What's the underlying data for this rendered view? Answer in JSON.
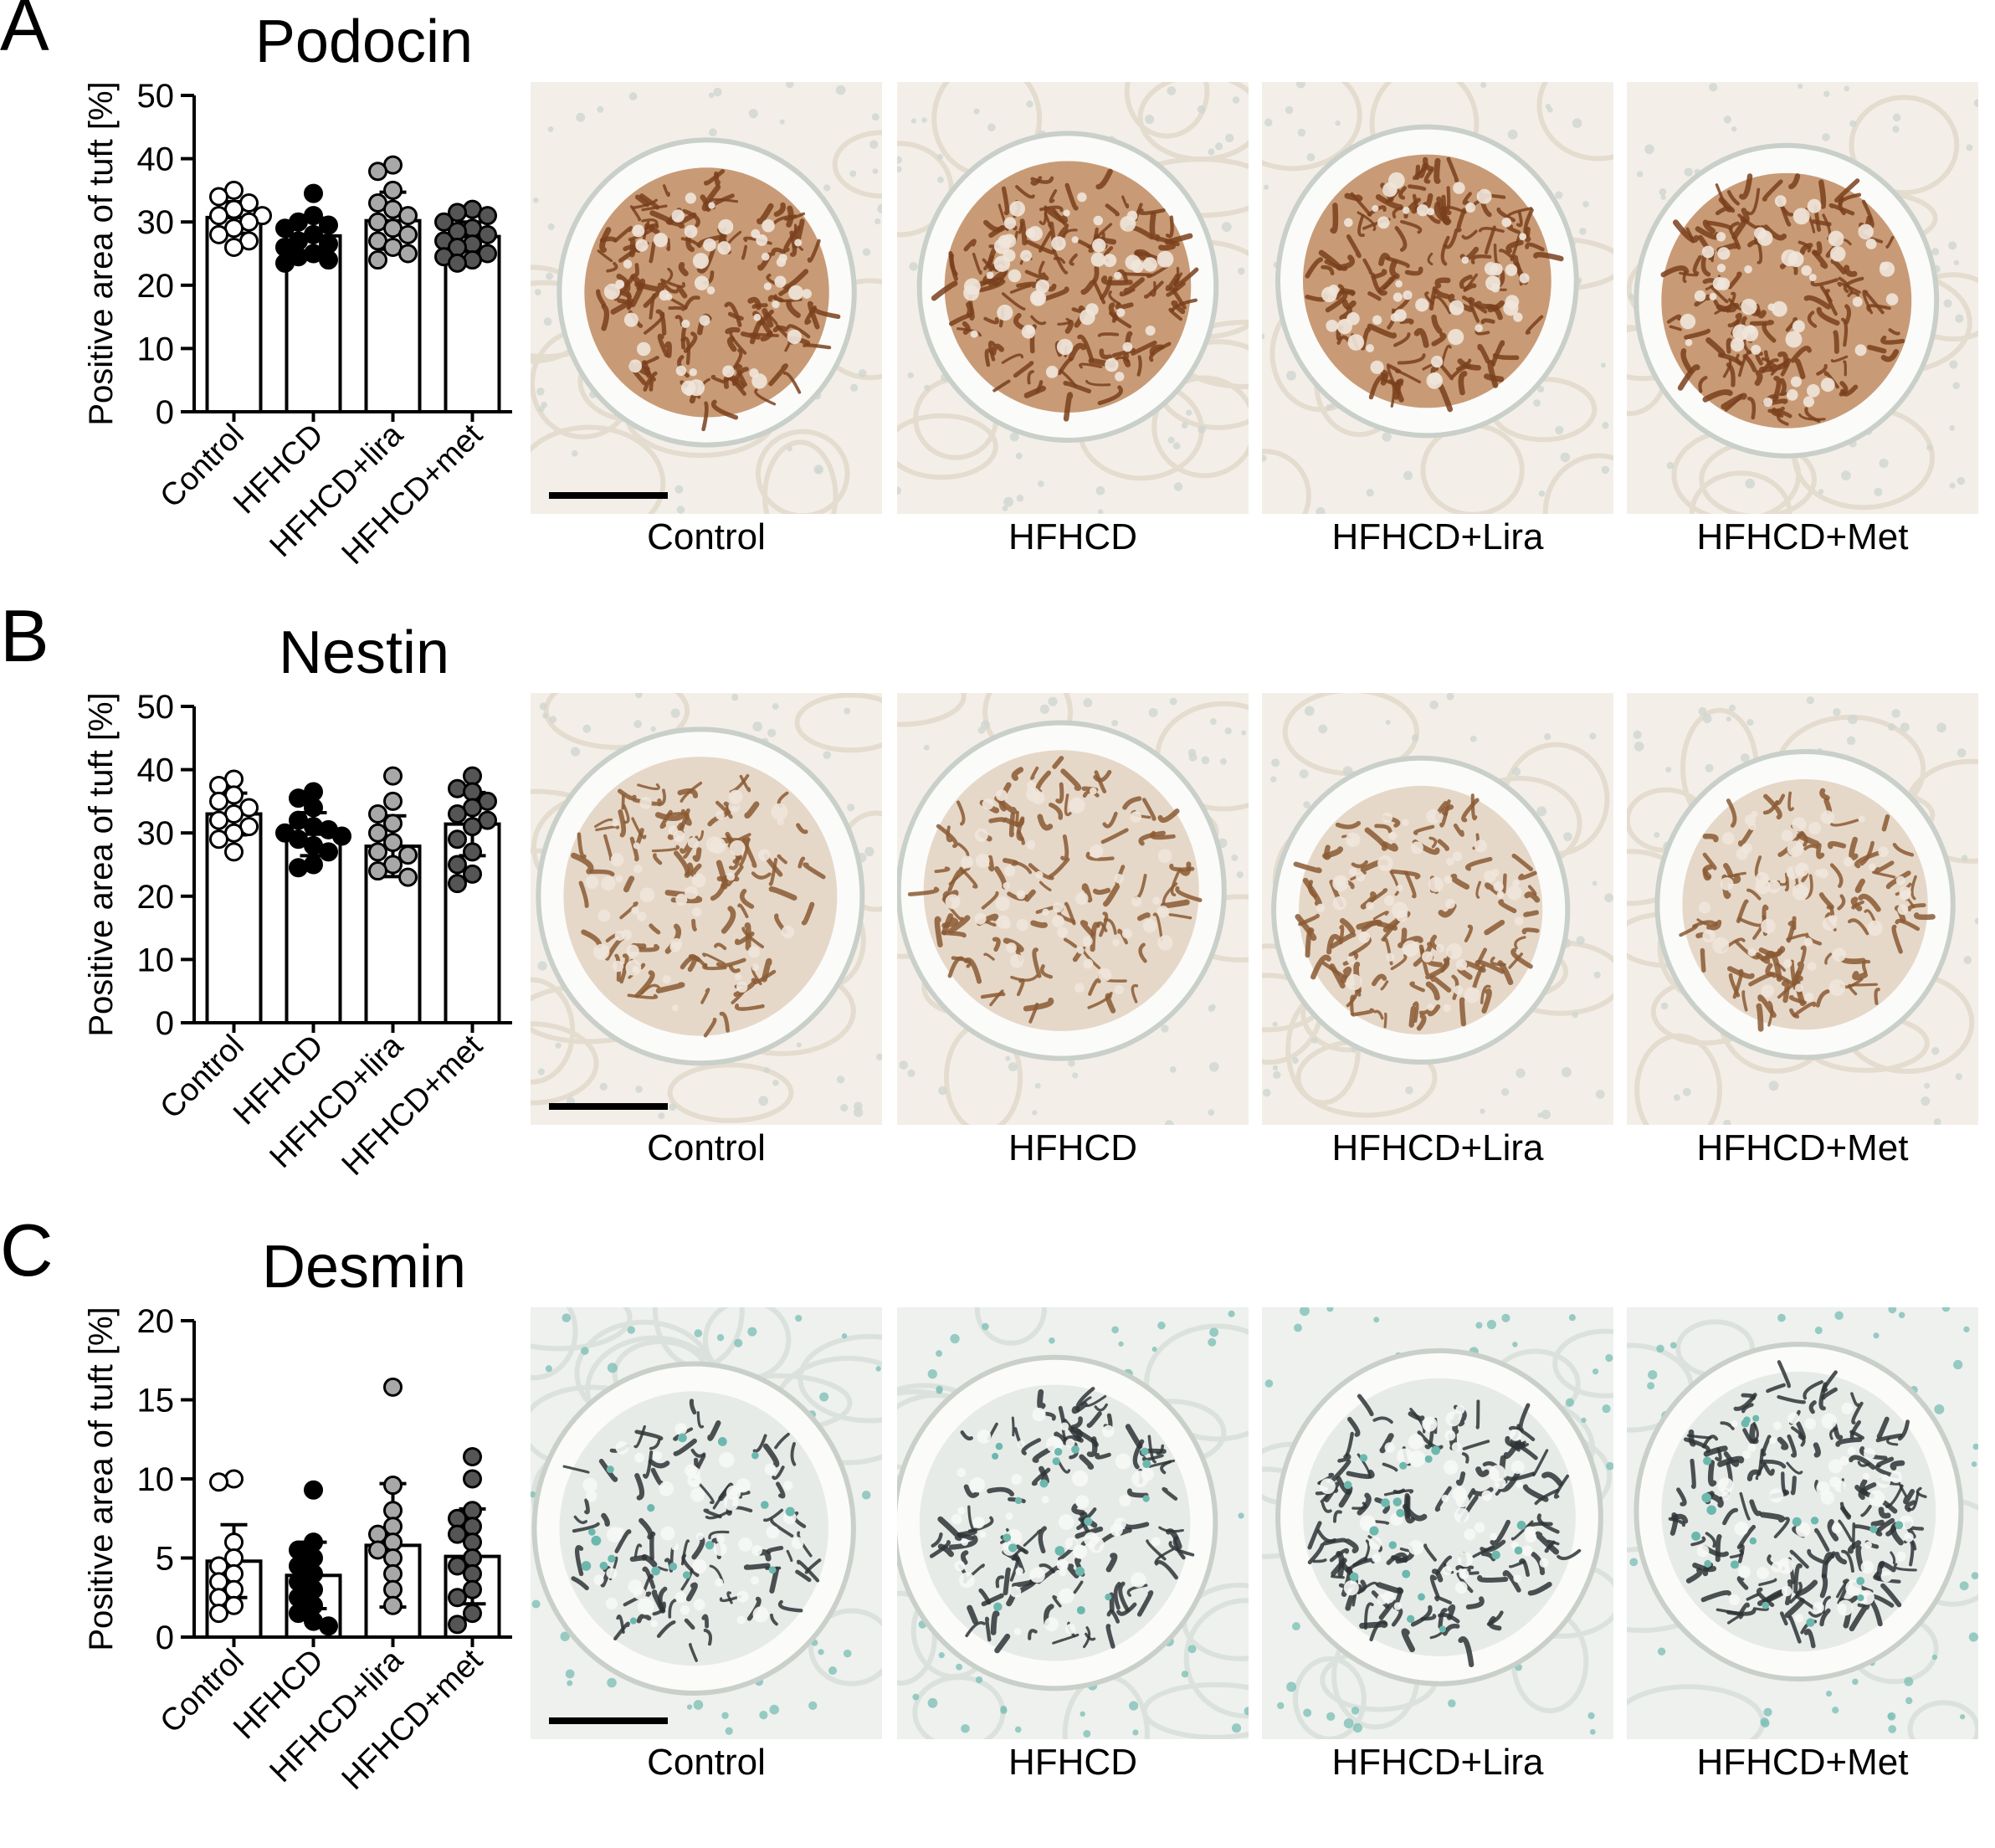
{
  "panels": [
    {
      "letter": "A",
      "title": "Podocin",
      "stain": "brown",
      "chart_data": {
        "type": "bar",
        "title": "Podocin",
        "ylabel": "Positive area of tuft [%]",
        "ylim": [
          0,
          50
        ],
        "yticks": [
          0,
          10,
          20,
          30,
          40,
          50
        ],
        "categories": [
          "Control",
          "HFHCD",
          "HFHCD+lira",
          "HFHCD+met"
        ],
        "means": [
          30.7,
          27.8,
          30.2,
          27.7
        ],
        "sd": [
          2.5,
          2.8,
          4.5,
          2.3
        ],
        "fills": [
          "#ffffff",
          "#000000",
          "#a8a8a8",
          "#555555"
        ],
        "points": [
          [
            35,
            34,
            33,
            32,
            31,
            31,
            30,
            29,
            28,
            27,
            26
          ],
          [
            34.5,
            31,
            30,
            29.5,
            29,
            28,
            27,
            26.5,
            26,
            25,
            24.5,
            24,
            23.5
          ],
          [
            39,
            38,
            35,
            33,
            32,
            31,
            30,
            29,
            28,
            27,
            26,
            25,
            24
          ],
          [
            32,
            31.5,
            31,
            30,
            29,
            28.5,
            28,
            27,
            26.5,
            26,
            25,
            24.5,
            24,
            23.5
          ]
        ]
      },
      "micrographs": {
        "labels": [
          "Control",
          "HFHCD",
          "HFHCD+Lira",
          "HFHCD+Met"
        ]
      }
    },
    {
      "letter": "B",
      "title": "Nestin",
      "stain": "brown",
      "chart_data": {
        "type": "bar",
        "title": "Nestin",
        "ylabel": "Positive area of tuft [%]",
        "ylim": [
          0,
          50
        ],
        "yticks": [
          0,
          10,
          20,
          30,
          40,
          50
        ],
        "categories": [
          "Control",
          "HFHCD",
          "HFHCD+lira",
          "HFHCD+met"
        ],
        "means": [
          33.0,
          29.8,
          27.9,
          31.4
        ],
        "sd": [
          3.3,
          3.4,
          4.8,
          5.0
        ],
        "fills": [
          "#ffffff",
          "#000000",
          "#a8a8a8",
          "#555555"
        ],
        "points": [
          [
            38.5,
            37.5,
            36,
            35,
            34,
            33,
            32,
            31,
            30,
            29,
            27
          ],
          [
            36.5,
            35.5,
            34,
            32,
            31,
            30.5,
            30,
            29.5,
            29,
            28,
            27,
            25,
            24.5
          ],
          [
            39,
            35,
            33,
            31.5,
            30,
            28.5,
            27,
            26.5,
            25,
            24,
            23
          ],
          [
            39,
            37,
            36.5,
            35,
            34,
            33,
            32,
            31,
            29,
            27,
            25,
            23.5,
            22
          ]
        ]
      },
      "micrographs": {
        "labels": [
          "Control",
          "HFHCD",
          "HFHCD+Lira",
          "HFHCD+Met"
        ]
      }
    },
    {
      "letter": "C",
      "title": "Desmin",
      "stain": "dark",
      "chart_data": {
        "type": "bar",
        "title": "Desmin",
        "ylabel": "Positive area of tuft [%]",
        "ylim": [
          0,
          20
        ],
        "yticks": [
          0,
          5,
          10,
          15,
          20
        ],
        "categories": [
          "Control",
          "HFHCD",
          "HFHCD+lira",
          "HFHCD+met"
        ],
        "means": [
          4.8,
          3.9,
          5.8,
          5.1
        ],
        "sd": [
          2.3,
          2.1,
          3.9,
          3.0
        ],
        "fills": [
          "#ffffff",
          "#000000",
          "#a8a8a8",
          "#555555"
        ],
        "points": [
          [
            10,
            9.8,
            6,
            5,
            4.5,
            4,
            3.5,
            3,
            2.5,
            2,
            1.5
          ],
          [
            9.3,
            6,
            5.5,
            5,
            4.5,
            4,
            3.5,
            3,
            2.5,
            2,
            1.5,
            1,
            0.7
          ],
          [
            15.8,
            9.6,
            8,
            7,
            6.5,
            6,
            5.5,
            5,
            4,
            3,
            2
          ],
          [
            11.4,
            10,
            8,
            7.5,
            7,
            6.5,
            6,
            5,
            4.5,
            4,
            3,
            2.5,
            1.5,
            0.8
          ]
        ]
      },
      "micrographs": {
        "labels": [
          "Control",
          "HFHCD",
          "HFHCD+Lira",
          "HFHCD+Met"
        ]
      }
    }
  ]
}
